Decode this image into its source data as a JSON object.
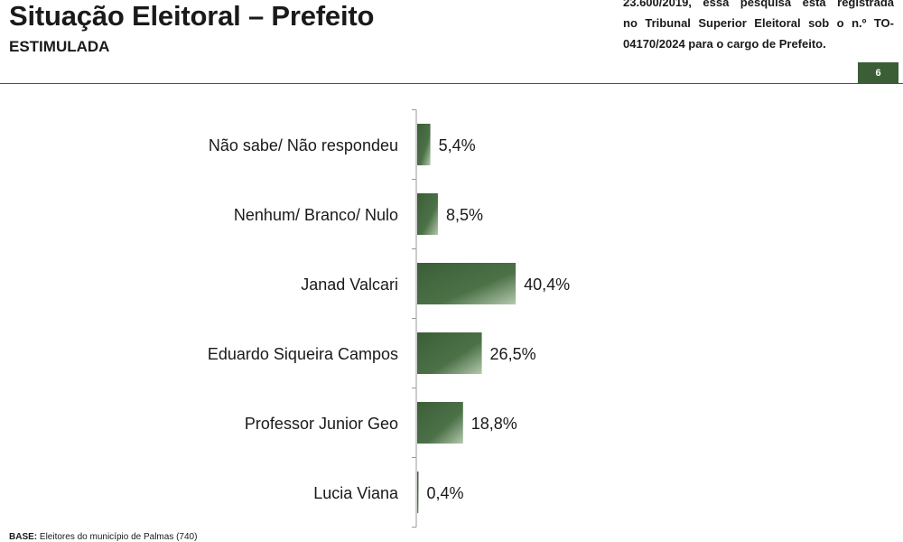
{
  "header": {
    "title": "Situação Eleitoral – Prefeito",
    "subtitle": "ESTIMULADA",
    "note_lines": [
      "23.600/2019, essa pesquisa está registrada",
      "no Tribunal Superior Eleitoral sob o n.º TO-",
      "04170/2024 para o cargo de Prefeito."
    ],
    "page_number": "6"
  },
  "footer": {
    "base_label": "BASE:",
    "base_text": "Eleitores do município de Palmas (740)"
  },
  "colors": {
    "bar_dark": "#3b5e37",
    "bar_light": "#a9c2a4",
    "accent": "#3b5e37"
  },
  "chart_data": {
    "type": "bar",
    "orientation": "horizontal",
    "categories": [
      "Não sabe/ Não respondeu",
      "Nenhum/ Branco/ Nulo",
      "Janad Valcari",
      "Eduardo Siqueira Campos",
      "Professor Junior Geo",
      "Lucia Viana"
    ],
    "values": [
      5.4,
      8.5,
      40.4,
      26.5,
      18.8,
      0.4
    ],
    "value_labels": [
      "5,4%",
      "8,5%",
      "40,4%",
      "26,5%",
      "18,8%",
      "0,4%"
    ],
    "xlim": [
      0,
      100
    ],
    "grid": false,
    "legend": "none"
  }
}
